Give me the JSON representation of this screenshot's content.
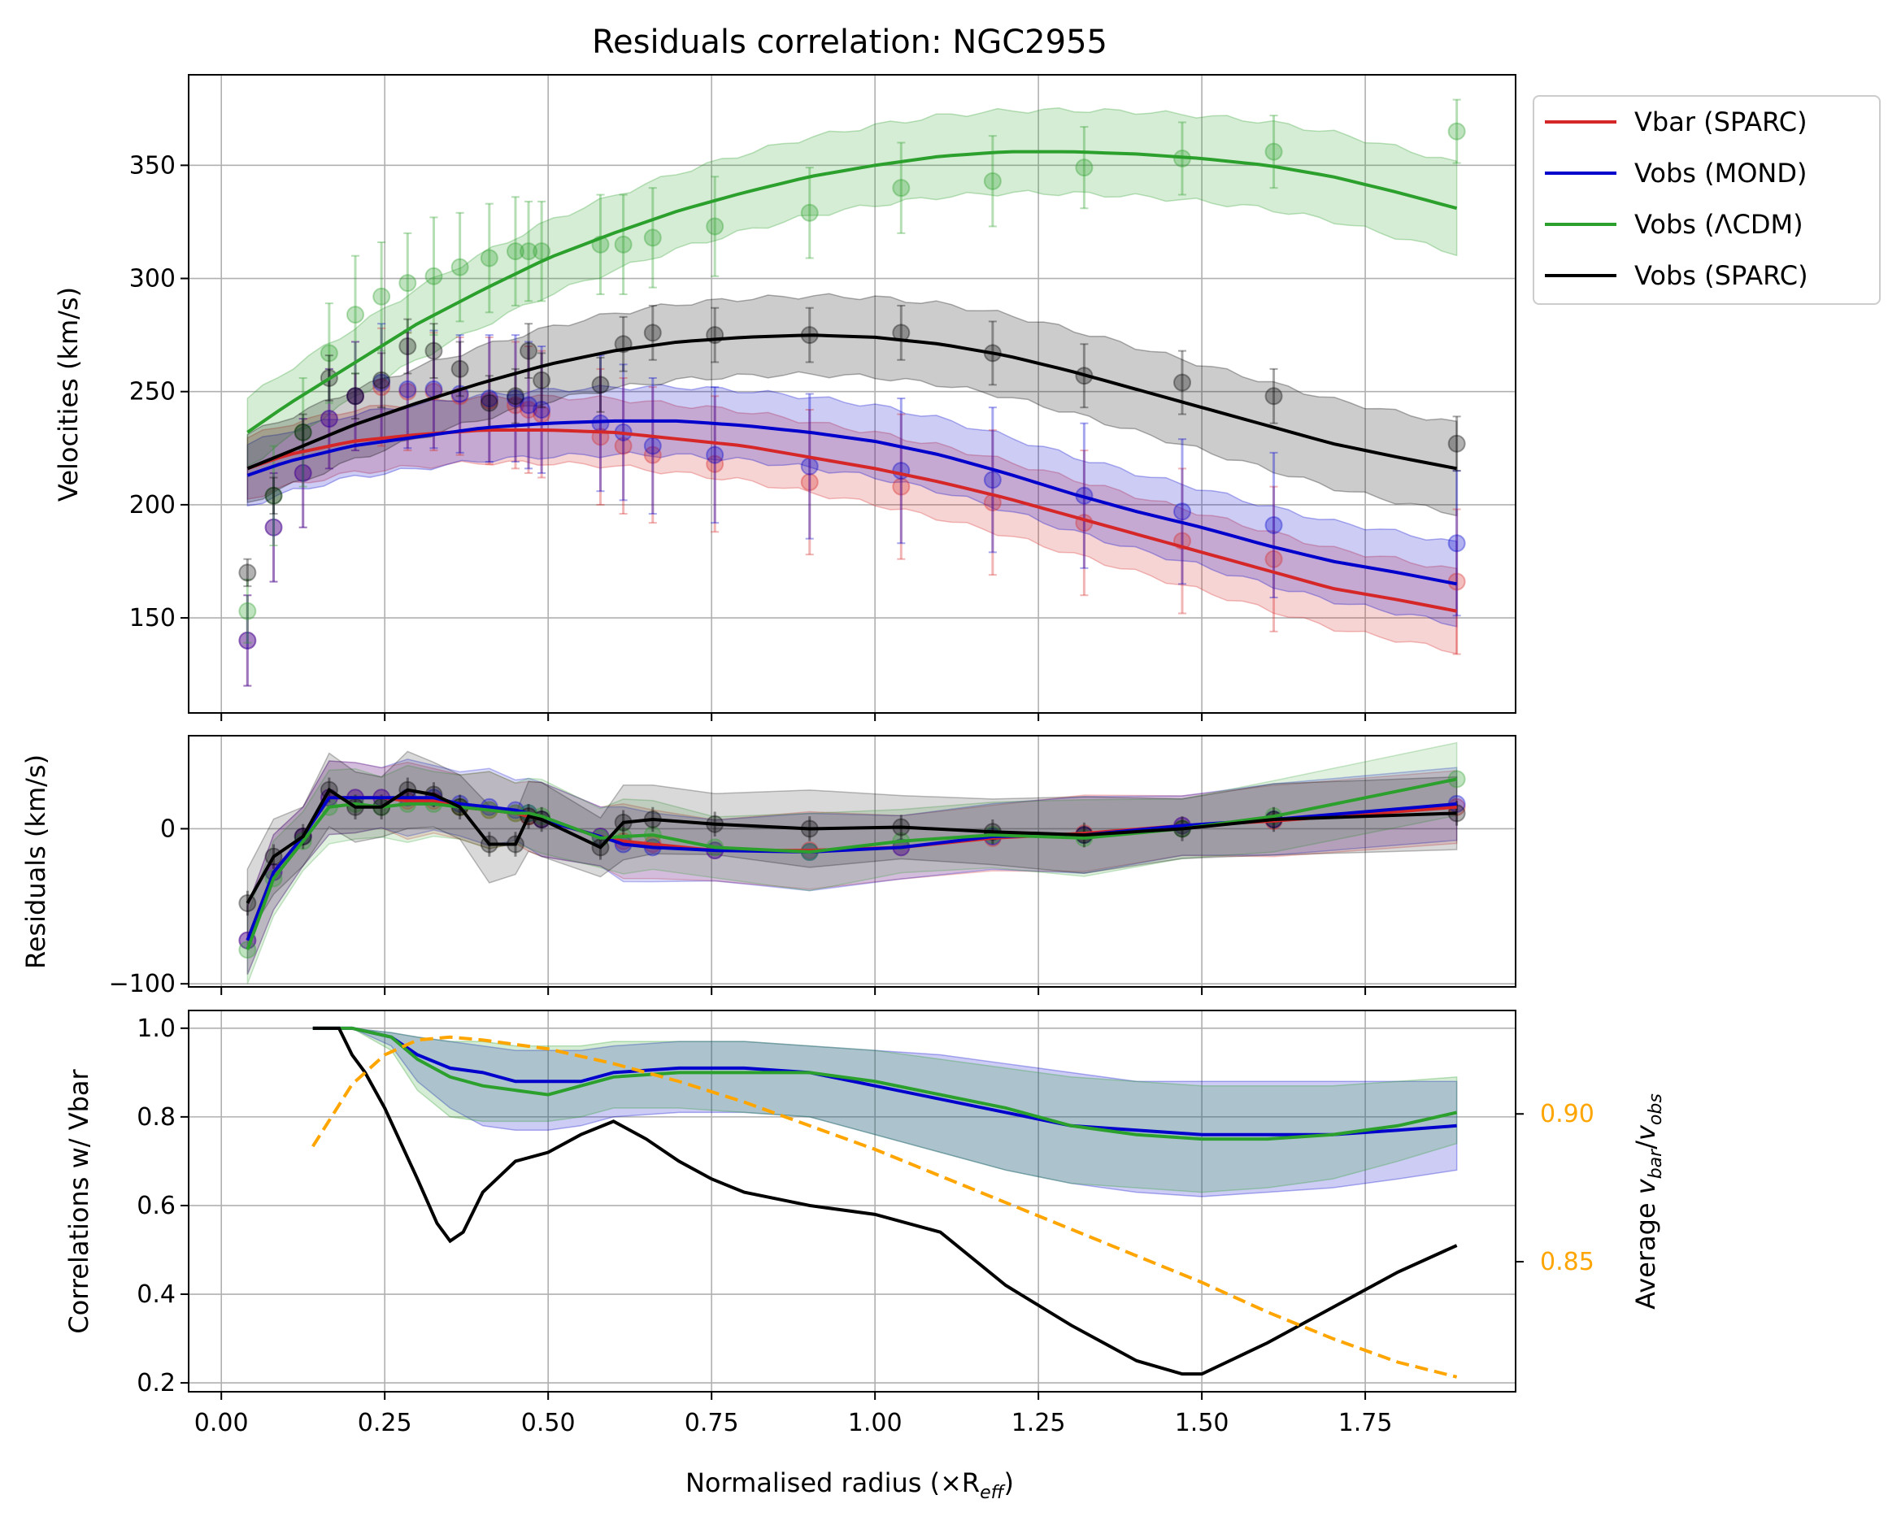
{
  "chart_data": [
    {
      "type": "line",
      "title": "Residuals correlation: NGC2955",
      "xlabel": "",
      "ylabel": "Velocities (km/s)",
      "xlim": [
        -0.05,
        1.98
      ],
      "ylim": [
        108,
        390
      ],
      "xticks": [
        0.0,
        0.25,
        0.5,
        0.75,
        1.0,
        1.25,
        1.5,
        1.75
      ],
      "yticks": [
        150,
        200,
        250,
        300,
        350
      ],
      "grid": true,
      "legend": "outside-top-right",
      "x_points": [
        0.04,
        0.08,
        0.125,
        0.165,
        0.205,
        0.245,
        0.285,
        0.325,
        0.365,
        0.41,
        0.45,
        0.47,
        0.49,
        0.58,
        0.615,
        0.66,
        0.755,
        0.9,
        1.04,
        1.18,
        1.32,
        1.47,
        1.61,
        1.89
      ],
      "series": [
        {
          "name": "Vbar (SPARC)",
          "color": "#d62728",
          "line_x": [
            0.04,
            0.1,
            0.2,
            0.3,
            0.4,
            0.5,
            0.6,
            0.7,
            0.8,
            0.9,
            1.0,
            1.1,
            1.2,
            1.3,
            1.4,
            1.5,
            1.6,
            1.7,
            1.8,
            1.89
          ],
          "line_y": [
            216,
            222,
            228,
            231,
            233,
            233,
            232,
            229,
            226,
            221,
            216,
            210,
            203,
            195,
            187,
            179,
            171,
            163,
            158,
            153
          ],
          "band": 18,
          "points": [
            140,
            190,
            214,
            238,
            248,
            252,
            250,
            250,
            248,
            246,
            244,
            242,
            240,
            230,
            226,
            222,
            218,
            210,
            208,
            201,
            192,
            184,
            176,
            166
          ],
          "errors": [
            20,
            24,
            24,
            22,
            24,
            26,
            26,
            26,
            26,
            28,
            28,
            28,
            28,
            30,
            30,
            30,
            30,
            32,
            32,
            32,
            32,
            32,
            32,
            32
          ]
        },
        {
          "name": "Vobs (MOND)",
          "color": "#0000cd",
          "line_x": [
            0.04,
            0.1,
            0.2,
            0.3,
            0.4,
            0.5,
            0.6,
            0.7,
            0.8,
            0.9,
            1.0,
            1.1,
            1.2,
            1.3,
            1.4,
            1.5,
            1.6,
            1.7,
            1.8,
            1.89
          ],
          "line_y": [
            213,
            219,
            226,
            230,
            234,
            236,
            237,
            237,
            235,
            232,
            228,
            222,
            214,
            205,
            197,
            190,
            182,
            175,
            170,
            165
          ],
          "band": 18,
          "points": [
            140,
            190,
            214,
            238,
            248,
            254,
            251,
            251,
            249,
            247,
            247,
            244,
            242,
            236,
            232,
            226,
            222,
            217,
            215,
            211,
            204,
            197,
            191,
            183
          ],
          "errors": [
            20,
            24,
            24,
            22,
            24,
            26,
            26,
            26,
            26,
            28,
            28,
            28,
            28,
            30,
            30,
            30,
            30,
            32,
            32,
            32,
            32,
            32,
            32,
            32
          ]
        },
        {
          "name": "Vobs (ΛCDM)",
          "color": "#2ca02c",
          "line_x": [
            0.04,
            0.1,
            0.2,
            0.3,
            0.4,
            0.5,
            0.6,
            0.7,
            0.8,
            0.9,
            1.0,
            1.1,
            1.2,
            1.3,
            1.4,
            1.5,
            1.6,
            1.7,
            1.8,
            1.89
          ],
          "line_y": [
            232,
            244,
            262,
            280,
            295,
            309,
            320,
            330,
            338,
            345,
            350,
            354,
            356,
            356,
            355,
            353,
            350,
            345,
            338,
            331
          ],
          "band": 20,
          "points": [
            153,
            204,
            232,
            267,
            284,
            292,
            298,
            301,
            305,
            309,
            312,
            312,
            312,
            315,
            315,
            318,
            323,
            329,
            340,
            343,
            349,
            353,
            356,
            365
          ],
          "errors": [
            14,
            22,
            24,
            22,
            26,
            24,
            22,
            26,
            24,
            24,
            24,
            22,
            22,
            22,
            22,
            22,
            22,
            20,
            20,
            20,
            18,
            16,
            16,
            14
          ]
        },
        {
          "name": "Vobs (SPARC)",
          "color": "#000000",
          "line_x": [
            0.04,
            0.1,
            0.2,
            0.3,
            0.4,
            0.5,
            0.6,
            0.7,
            0.8,
            0.9,
            1.0,
            1.1,
            1.2,
            1.3,
            1.4,
            1.5,
            1.6,
            1.7,
            1.8,
            1.89
          ],
          "line_y": [
            216,
            223,
            235,
            245,
            254,
            262,
            268,
            272,
            274,
            275,
            274,
            271,
            266,
            259,
            251,
            243,
            235,
            227,
            221,
            216
          ],
          "band": 20,
          "points": [
            170,
            204,
            232,
            256,
            248,
            255,
            270,
            268,
            260,
            245,
            248,
            268,
            255,
            253,
            271,
            276,
            275,
            275,
            276,
            267,
            257,
            254,
            248,
            227
          ],
          "errors": [
            6,
            8,
            8,
            10,
            10,
            12,
            12,
            12,
            12,
            12,
            12,
            12,
            12,
            12,
            12,
            12,
            12,
            12,
            12,
            14,
            14,
            14,
            12,
            12
          ]
        }
      ]
    },
    {
      "type": "line",
      "title": "",
      "xlabel": "",
      "ylabel": "Residuals (km/s)",
      "xlim": [
        -0.05,
        1.98
      ],
      "ylim": [
        -102,
        60
      ],
      "yticks": [
        -100,
        0
      ],
      "grid": true,
      "series": [
        {
          "name": "Vbar (SPARC)",
          "color": "#d62728",
          "x": [
            0.04,
            0.08,
            0.125,
            0.165,
            0.205,
            0.245,
            0.285,
            0.325,
            0.365,
            0.41,
            0.45,
            0.47,
            0.49,
            0.58,
            0.615,
            0.66,
            0.755,
            0.9,
            1.04,
            1.18,
            1.32,
            1.47,
            1.61,
            1.89
          ],
          "values": [
            -72,
            -28,
            -5,
            20,
            20,
            20,
            18,
            18,
            14,
            12,
            10,
            8,
            6,
            -5,
            -8,
            -10,
            -14,
            -14,
            -12,
            -6,
            -3,
            2,
            5,
            14
          ]
        },
        {
          "name": "Vobs (MOND)",
          "color": "#0000cd",
          "x": [
            0.04,
            0.08,
            0.125,
            0.165,
            0.205,
            0.245,
            0.285,
            0.325,
            0.365,
            0.41,
            0.45,
            0.47,
            0.49,
            0.58,
            0.615,
            0.66,
            0.755,
            0.9,
            1.04,
            1.18,
            1.32,
            1.47,
            1.61,
            1.89
          ],
          "values": [
            -72,
            -28,
            -5,
            20,
            20,
            20,
            20,
            20,
            16,
            14,
            12,
            10,
            6,
            -5,
            -10,
            -12,
            -14,
            -15,
            -12,
            -5,
            -4,
            2,
            6,
            16
          ]
        },
        {
          "name": "Vobs (ΛCDM)",
          "color": "#2ca02c",
          "x": [
            0.04,
            0.08,
            0.125,
            0.165,
            0.205,
            0.245,
            0.285,
            0.325,
            0.365,
            0.41,
            0.45,
            0.47,
            0.49,
            0.58,
            0.615,
            0.66,
            0.755,
            0.9,
            1.04,
            1.18,
            1.32,
            1.47,
            1.61,
            1.89
          ],
          "values": [
            -78,
            -32,
            -8,
            14,
            16,
            14,
            16,
            16,
            14,
            12,
            10,
            10,
            8,
            -6,
            -5,
            -4,
            -12,
            -15,
            -8,
            -4,
            -6,
            0,
            8,
            32
          ]
        },
        {
          "name": "Vobs (SPARC)",
          "color": "#000000",
          "x": [
            0.04,
            0.08,
            0.125,
            0.165,
            0.205,
            0.245,
            0.285,
            0.325,
            0.365,
            0.41,
            0.45,
            0.47,
            0.49,
            0.58,
            0.615,
            0.66,
            0.755,
            0.9,
            1.04,
            1.18,
            1.32,
            1.47,
            1.61,
            1.89
          ],
          "values": [
            -48,
            -18,
            -5,
            25,
            14,
            14,
            25,
            22,
            14,
            -10,
            -10,
            8,
            6,
            -12,
            4,
            6,
            3,
            0,
            1,
            -2,
            -4,
            0,
            6,
            10
          ]
        }
      ]
    },
    {
      "type": "line",
      "title": "",
      "xlabel": "Normalised radius (×R",
      "xlabel_sub": "eff",
      "xlabel_close": ")",
      "ylabel": "Correlations w/ Vbar",
      "y2label_prefix": "Average ",
      "y2label_v": "v",
      "y2label_sub1": "bar",
      "y2label_slash": "/",
      "y2label_sub2": "obs",
      "xlim": [
        -0.05,
        1.98
      ],
      "ylim": [
        0.18,
        1.04
      ],
      "y2lim": [
        0.806,
        0.935
      ],
      "yticks": [
        0.2,
        0.4,
        0.6,
        0.8,
        1.0
      ],
      "y2ticks": [
        0.85,
        0.9
      ],
      "grid": true,
      "series": [
        {
          "name": "Vobs (MOND)",
          "color": "#0000cd",
          "x": [
            0.14,
            0.2,
            0.26,
            0.3,
            0.35,
            0.4,
            0.45,
            0.5,
            0.55,
            0.6,
            0.7,
            0.8,
            0.9,
            1.0,
            1.1,
            1.2,
            1.3,
            1.4,
            1.5,
            1.6,
            1.7,
            1.8,
            1.89
          ],
          "values": [
            1.0,
            1.0,
            0.98,
            0.94,
            0.91,
            0.9,
            0.88,
            0.88,
            0.88,
            0.9,
            0.91,
            0.91,
            0.9,
            0.87,
            0.84,
            0.81,
            0.78,
            0.77,
            0.76,
            0.76,
            0.76,
            0.77,
            0.78
          ],
          "band_lo": [
            1.0,
            1.0,
            0.96,
            0.88,
            0.82,
            0.78,
            0.77,
            0.77,
            0.78,
            0.8,
            0.81,
            0.81,
            0.8,
            0.76,
            0.72,
            0.68,
            0.65,
            0.63,
            0.62,
            0.63,
            0.64,
            0.66,
            0.68
          ],
          "band_hi": [
            1.0,
            1.0,
            0.99,
            0.98,
            0.97,
            0.96,
            0.95,
            0.95,
            0.95,
            0.96,
            0.97,
            0.97,
            0.96,
            0.95,
            0.94,
            0.92,
            0.9,
            0.88,
            0.88,
            0.88,
            0.88,
            0.88,
            0.88
          ]
        },
        {
          "name": "Vobs (ΛCDM)",
          "color": "#2ca02c",
          "x": [
            0.14,
            0.2,
            0.26,
            0.3,
            0.35,
            0.4,
            0.45,
            0.5,
            0.55,
            0.6,
            0.7,
            0.8,
            0.9,
            1.0,
            1.1,
            1.2,
            1.3,
            1.4,
            1.5,
            1.6,
            1.7,
            1.8,
            1.89
          ],
          "values": [
            1.0,
            1.0,
            0.98,
            0.93,
            0.89,
            0.87,
            0.86,
            0.85,
            0.87,
            0.89,
            0.9,
            0.9,
            0.9,
            0.88,
            0.85,
            0.82,
            0.78,
            0.76,
            0.75,
            0.75,
            0.76,
            0.78,
            0.81
          ],
          "band_lo": [
            1.0,
            1.0,
            0.95,
            0.86,
            0.8,
            0.79,
            0.79,
            0.79,
            0.8,
            0.82,
            0.82,
            0.81,
            0.8,
            0.76,
            0.72,
            0.68,
            0.65,
            0.64,
            0.63,
            0.64,
            0.66,
            0.7,
            0.74
          ],
          "band_hi": [
            1.0,
            1.0,
            0.99,
            0.98,
            0.97,
            0.97,
            0.96,
            0.96,
            0.96,
            0.97,
            0.97,
            0.97,
            0.96,
            0.95,
            0.93,
            0.91,
            0.89,
            0.88,
            0.87,
            0.87,
            0.87,
            0.88,
            0.89
          ]
        },
        {
          "name": "Vobs (SPARC)",
          "color": "#000000",
          "x": [
            0.14,
            0.18,
            0.2,
            0.22,
            0.25,
            0.3,
            0.33,
            0.35,
            0.37,
            0.4,
            0.45,
            0.5,
            0.55,
            0.6,
            0.65,
            0.7,
            0.75,
            0.8,
            0.9,
            1.0,
            1.1,
            1.2,
            1.3,
            1.4,
            1.47,
            1.5,
            1.6,
            1.7,
            1.8,
            1.89
          ],
          "values": [
            1.0,
            1.0,
            0.94,
            0.9,
            0.82,
            0.66,
            0.56,
            0.52,
            0.54,
            0.63,
            0.7,
            0.72,
            0.76,
            0.79,
            0.75,
            0.7,
            0.66,
            0.63,
            0.6,
            0.58,
            0.54,
            0.42,
            0.33,
            0.25,
            0.22,
            0.22,
            0.29,
            0.37,
            0.45,
            0.51
          ]
        },
        {
          "name": "Average vbar/vobs",
          "color": "#ffa500",
          "axis": "right",
          "dashed": true,
          "x": [
            0.14,
            0.2,
            0.25,
            0.3,
            0.35,
            0.4,
            0.5,
            0.6,
            0.7,
            0.8,
            0.9,
            1.0,
            1.1,
            1.2,
            1.3,
            1.4,
            1.5,
            1.6,
            1.7,
            1.8,
            1.89
          ],
          "values": [
            0.889,
            0.91,
            0.92,
            0.925,
            0.926,
            0.925,
            0.922,
            0.917,
            0.911,
            0.904,
            0.896,
            0.888,
            0.879,
            0.87,
            0.861,
            0.852,
            0.843,
            0.833,
            0.824,
            0.816,
            0.811
          ]
        }
      ]
    }
  ]
}
